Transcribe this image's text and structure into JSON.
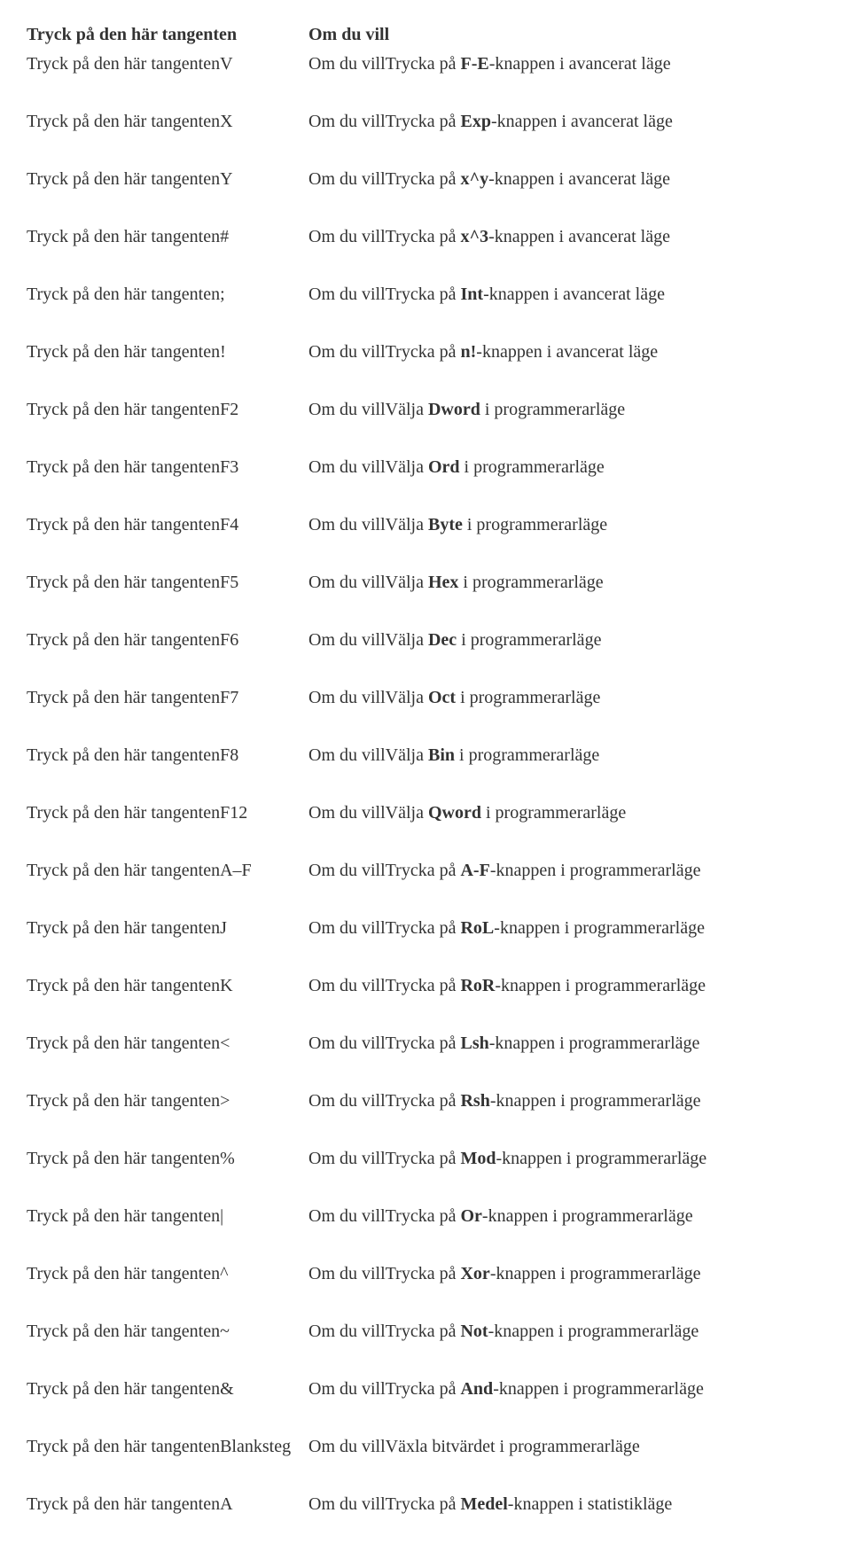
{
  "text_color": "#333333",
  "background_color": "#ffffff",
  "font_family": "Times New Roman",
  "font_size_pt": 15,
  "header": {
    "left": "Tryck på den här tangenten",
    "right": "Om du vill"
  },
  "left_prefix": "Tryck på den här tangenten",
  "right_prefix": "Om du vill",
  "rows": [
    {
      "key": "V",
      "desc_pre": "Trycka på ",
      "bold": "F-E",
      "desc_post": "-knappen i avancerat läge"
    },
    {
      "key": "X",
      "desc_pre": "Trycka på ",
      "bold": "Exp",
      "desc_post": "-knappen i avancerat läge"
    },
    {
      "key": "Y",
      "desc_pre": "Trycka på ",
      "bold": "x^y",
      "desc_post": "-knappen i avancerat läge"
    },
    {
      "key": "#",
      "desc_pre": "Trycka på ",
      "bold": "x^3",
      "desc_post": "-knappen i avancerat läge"
    },
    {
      "key": ";",
      "desc_pre": "Trycka på ",
      "bold": "Int",
      "desc_post": "-knappen i avancerat läge"
    },
    {
      "key": "!",
      "desc_pre": "Trycka på ",
      "bold": "n!",
      "desc_post": "-knappen i avancerat läge"
    },
    {
      "key": "F2",
      "desc_pre": "Välja ",
      "bold": "Dword",
      "desc_post": " i programmerarläge"
    },
    {
      "key": "F3",
      "desc_pre": "Välja ",
      "bold": "Ord",
      "desc_post": " i programmerarläge"
    },
    {
      "key": "F4",
      "desc_pre": "Välja ",
      "bold": "Byte",
      "desc_post": " i programmerarläge"
    },
    {
      "key": "F5",
      "desc_pre": "Välja ",
      "bold": "Hex",
      "desc_post": " i programmerarläge"
    },
    {
      "key": "F6",
      "desc_pre": "Välja ",
      "bold": "Dec",
      "desc_post": " i programmerarläge"
    },
    {
      "key": "F7",
      "desc_pre": "Välja ",
      "bold": "Oct",
      "desc_post": " i programmerarläge"
    },
    {
      "key": "F8",
      "desc_pre": "Välja ",
      "bold": "Bin",
      "desc_post": " i programmerarläge"
    },
    {
      "key": "F12",
      "desc_pre": "Välja ",
      "bold": "Qword",
      "desc_post": " i programmerarläge"
    },
    {
      "key": "A–F",
      "desc_pre": "Trycka på ",
      "bold": "A-F",
      "desc_post": "-knappen i programmerarläge"
    },
    {
      "key": "J",
      "desc_pre": "Trycka på ",
      "bold": "RoL",
      "desc_post": "-knappen i programmerarläge"
    },
    {
      "key": "K",
      "desc_pre": "Trycka på ",
      "bold": "RoR",
      "desc_post": "-knappen i programmerarläge"
    },
    {
      "key": "<",
      "desc_pre": "Trycka på ",
      "bold": "Lsh",
      "desc_post": "-knappen i programmerarläge"
    },
    {
      "key": ">",
      "desc_pre": "Trycka på ",
      "bold": "Rsh",
      "desc_post": "-knappen i programmerarläge"
    },
    {
      "key": "%",
      "desc_pre": "Trycka på ",
      "bold": "Mod",
      "desc_post": "-knappen i programmerarläge"
    },
    {
      "key": "|",
      "desc_pre": "Trycka på ",
      "bold": "Or",
      "desc_post": "-knappen i programmerarläge"
    },
    {
      "key": "^",
      "desc_pre": "Trycka på ",
      "bold": "Xor",
      "desc_post": "-knappen i programmerarläge"
    },
    {
      "key": "~",
      "desc_pre": "Trycka på ",
      "bold": "Not",
      "desc_post": "-knappen i programmerarläge"
    },
    {
      "key": "&",
      "desc_pre": "Trycka på ",
      "bold": "And",
      "desc_post": "-knappen i programmerarläge"
    },
    {
      "key": "Blanksteg",
      "desc_pre": "Växla bitvärdet i programmerarläge",
      "bold": "",
      "desc_post": ""
    },
    {
      "key": "A",
      "desc_pre": "Trycka på ",
      "bold": "Medel",
      "desc_post": "-knappen i statistikläge"
    }
  ]
}
